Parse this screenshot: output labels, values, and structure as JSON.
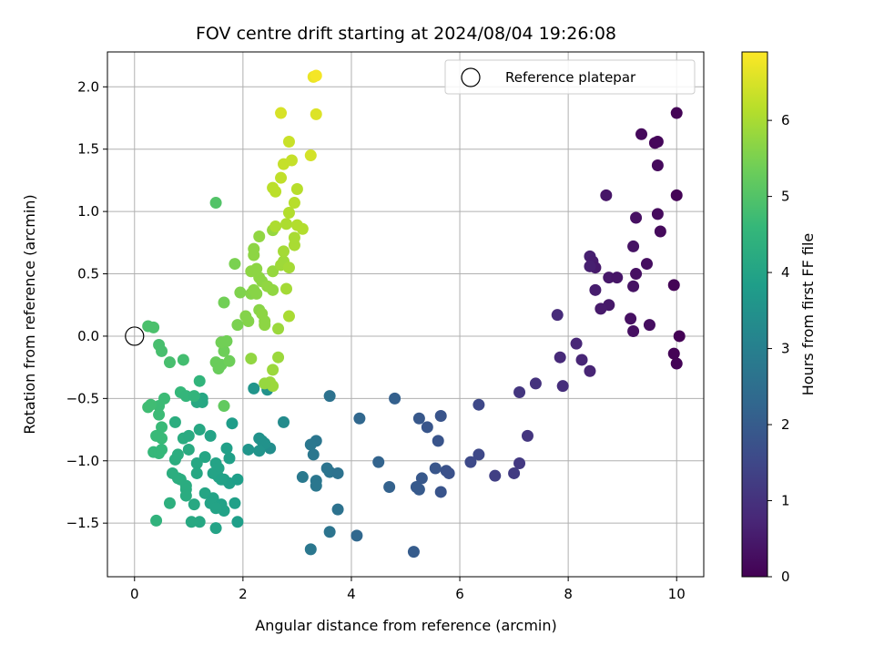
{
  "chart_data": {
    "type": "scatter",
    "title": "FOV centre drift starting at 2024/08/04 19:26:08",
    "xlabel": "Angular distance from reference (arcmin)",
    "ylabel": "Rotation from reference (arcmin)",
    "xlim": [
      -0.5,
      10.5
    ],
    "ylim": [
      -1.93,
      2.28
    ],
    "xticks": [
      0,
      2,
      4,
      6,
      8,
      10
    ],
    "yticks": [
      -1.5,
      -1.0,
      -0.5,
      0.0,
      0.5,
      1.0,
      1.5,
      2.0
    ],
    "ytick_labels": [
      "−1.5",
      "−1.0",
      "−0.5",
      "0.0",
      "0.5",
      "1.0",
      "1.5",
      "2.0"
    ],
    "grid": true,
    "legend": {
      "placement": "top-right",
      "entries": [
        "Reference platepar"
      ]
    },
    "reference_point": {
      "x": 0,
      "y": 0,
      "label": "Reference platepar"
    },
    "colorbar": {
      "label": "Hours from first FF file",
      "colormap": "viridis",
      "range": [
        0,
        6.9
      ],
      "ticks": [
        0,
        1,
        2,
        3,
        4,
        5,
        6
      ],
      "stops": [
        "#440154",
        "#482878",
        "#3e4989",
        "#31688e",
        "#26828e",
        "#1f9e89",
        "#35b779",
        "#6ece58",
        "#b5de2b",
        "#fde725"
      ]
    },
    "points": [
      {
        "x": 10.0,
        "y": 1.79,
        "h": 0.05
      },
      {
        "x": 9.35,
        "y": 1.62,
        "h": 0.15
      },
      {
        "x": 9.6,
        "y": 1.55,
        "h": 0.1
      },
      {
        "x": 9.65,
        "y": 1.56,
        "h": 0.12
      },
      {
        "x": 9.65,
        "y": 1.37,
        "h": 0.18
      },
      {
        "x": 8.7,
        "y": 1.13,
        "h": 0.4
      },
      {
        "x": 10.0,
        "y": 1.13,
        "h": 0.05
      },
      {
        "x": 9.25,
        "y": 0.95,
        "h": 0.3
      },
      {
        "x": 9.65,
        "y": 0.98,
        "h": 0.2
      },
      {
        "x": 9.7,
        "y": 0.84,
        "h": 0.18
      },
      {
        "x": 9.2,
        "y": 0.72,
        "h": 0.35
      },
      {
        "x": 8.4,
        "y": 0.64,
        "h": 0.6
      },
      {
        "x": 8.45,
        "y": 0.6,
        "h": 0.55
      },
      {
        "x": 8.5,
        "y": 0.55,
        "h": 0.5
      },
      {
        "x": 8.4,
        "y": 0.56,
        "h": 0.6
      },
      {
        "x": 8.75,
        "y": 0.47,
        "h": 0.45
      },
      {
        "x": 8.9,
        "y": 0.47,
        "h": 0.4
      },
      {
        "x": 9.25,
        "y": 0.5,
        "h": 0.3
      },
      {
        "x": 9.45,
        "y": 0.58,
        "h": 0.25
      },
      {
        "x": 9.2,
        "y": 0.4,
        "h": 0.35
      },
      {
        "x": 8.5,
        "y": 0.37,
        "h": 0.55
      },
      {
        "x": 8.75,
        "y": 0.25,
        "h": 0.45
      },
      {
        "x": 8.6,
        "y": 0.22,
        "h": 0.5
      },
      {
        "x": 9.95,
        "y": 0.41,
        "h": 0.05
      },
      {
        "x": 9.15,
        "y": 0.14,
        "h": 0.3
      },
      {
        "x": 9.5,
        "y": 0.09,
        "h": 0.25
      },
      {
        "x": 9.2,
        "y": 0.04,
        "h": 0.3
      },
      {
        "x": 10.05,
        "y": 0.0,
        "h": 0.02
      },
      {
        "x": 7.8,
        "y": 0.17,
        "h": 0.85
      },
      {
        "x": 8.15,
        "y": -0.06,
        "h": 0.75
      },
      {
        "x": 7.85,
        "y": -0.17,
        "h": 0.82
      },
      {
        "x": 8.25,
        "y": -0.19,
        "h": 0.72
      },
      {
        "x": 8.4,
        "y": -0.28,
        "h": 0.7
      },
      {
        "x": 9.95,
        "y": -0.14,
        "h": 0.05
      },
      {
        "x": 10.0,
        "y": -0.22,
        "h": 0.05
      },
      {
        "x": 7.4,
        "y": -0.38,
        "h": 1.0
      },
      {
        "x": 7.9,
        "y": -0.4,
        "h": 0.9
      },
      {
        "x": 7.1,
        "y": -0.45,
        "h": 1.1
      },
      {
        "x": 7.25,
        "y": -0.8,
        "h": 1.1
      },
      {
        "x": 7.1,
        "y": -1.02,
        "h": 1.15
      },
      {
        "x": 7.0,
        "y": -1.1,
        "h": 1.2
      },
      {
        "x": 6.65,
        "y": -1.12,
        "h": 1.3
      },
      {
        "x": 6.35,
        "y": -0.55,
        "h": 1.5
      },
      {
        "x": 6.35,
        "y": -0.95,
        "h": 1.5
      },
      {
        "x": 6.2,
        "y": -1.01,
        "h": 1.55
      },
      {
        "x": 5.65,
        "y": -0.64,
        "h": 1.8
      },
      {
        "x": 5.25,
        "y": -0.66,
        "h": 1.9
      },
      {
        "x": 5.4,
        "y": -0.73,
        "h": 1.85
      },
      {
        "x": 5.6,
        "y": -0.84,
        "h": 1.8
      },
      {
        "x": 4.8,
        "y": -0.5,
        "h": 2.1
      },
      {
        "x": 4.15,
        "y": -0.66,
        "h": 2.3
      },
      {
        "x": 4.5,
        "y": -1.01,
        "h": 2.2
      },
      {
        "x": 4.7,
        "y": -1.21,
        "h": 2.15
      },
      {
        "x": 5.55,
        "y": -1.06,
        "h": 1.85
      },
      {
        "x": 5.75,
        "y": -1.08,
        "h": 1.75
      },
      {
        "x": 5.8,
        "y": -1.1,
        "h": 1.72
      },
      {
        "x": 5.3,
        "y": -1.14,
        "h": 1.9
      },
      {
        "x": 5.2,
        "y": -1.21,
        "h": 1.95
      },
      {
        "x": 5.25,
        "y": -1.23,
        "h": 1.95
      },
      {
        "x": 5.65,
        "y": -1.25,
        "h": 1.8
      },
      {
        "x": 5.15,
        "y": -1.73,
        "h": 2.0
      },
      {
        "x": 4.1,
        "y": -1.6,
        "h": 2.3
      },
      {
        "x": 3.6,
        "y": -0.48,
        "h": 2.6
      },
      {
        "x": 3.35,
        "y": -0.84,
        "h": 2.7
      },
      {
        "x": 3.25,
        "y": -0.87,
        "h": 2.75
      },
      {
        "x": 3.3,
        "y": -0.95,
        "h": 2.75
      },
      {
        "x": 3.55,
        "y": -1.06,
        "h": 2.65
      },
      {
        "x": 3.6,
        "y": -1.09,
        "h": 2.65
      },
      {
        "x": 3.75,
        "y": -1.1,
        "h": 2.6
      },
      {
        "x": 3.1,
        "y": -1.13,
        "h": 2.8
      },
      {
        "x": 3.35,
        "y": -1.16,
        "h": 2.75
      },
      {
        "x": 3.35,
        "y": -1.2,
        "h": 2.75
      },
      {
        "x": 3.75,
        "y": -1.39,
        "h": 2.6
      },
      {
        "x": 3.6,
        "y": -1.57,
        "h": 2.65
      },
      {
        "x": 3.25,
        "y": -1.71,
        "h": 2.75
      },
      {
        "x": 2.75,
        "y": -0.69,
        "h": 3.3
      },
      {
        "x": 2.5,
        "y": -0.9,
        "h": 3.4
      },
      {
        "x": 2.3,
        "y": -0.82,
        "h": 3.5
      },
      {
        "x": 2.35,
        "y": -0.84,
        "h": 3.5
      },
      {
        "x": 2.4,
        "y": -0.86,
        "h": 3.5
      },
      {
        "x": 2.3,
        "y": -0.92,
        "h": 3.55
      },
      {
        "x": 2.1,
        "y": -0.91,
        "h": 3.6
      },
      {
        "x": 2.2,
        "y": -0.42,
        "h": 3.6
      },
      {
        "x": 2.45,
        "y": -0.43,
        "h": 3.5
      },
      {
        "x": 1.8,
        "y": -0.7,
        "h": 3.8
      },
      {
        "x": 1.25,
        "y": -0.5,
        "h": 4.1
      },
      {
        "x": 1.25,
        "y": -0.53,
        "h": 4.1
      },
      {
        "x": 1.15,
        "y": -0.53,
        "h": 4.15
      },
      {
        "x": 1.2,
        "y": -0.75,
        "h": 4.1
      },
      {
        "x": 1.4,
        "y": -0.8,
        "h": 4.0
      },
      {
        "x": 1.7,
        "y": -0.9,
        "h": 3.9
      },
      {
        "x": 1.75,
        "y": -0.98,
        "h": 3.9
      },
      {
        "x": 1.3,
        "y": -0.97,
        "h": 4.05
      },
      {
        "x": 1.0,
        "y": -0.91,
        "h": 4.2
      },
      {
        "x": 0.9,
        "y": -0.82,
        "h": 4.25
      },
      {
        "x": 1.0,
        "y": -0.8,
        "h": 4.2
      },
      {
        "x": 1.5,
        "y": -1.02,
        "h": 4.0
      },
      {
        "x": 1.55,
        "y": -1.06,
        "h": 4.0
      },
      {
        "x": 1.65,
        "y": -1.15,
        "h": 3.95
      },
      {
        "x": 1.75,
        "y": -1.18,
        "h": 3.9
      },
      {
        "x": 1.9,
        "y": -1.15,
        "h": 3.85
      },
      {
        "x": 1.15,
        "y": -1.02,
        "h": 4.1
      },
      {
        "x": 1.15,
        "y": -1.1,
        "h": 4.1
      },
      {
        "x": 1.45,
        "y": -1.1,
        "h": 4.0
      },
      {
        "x": 1.55,
        "y": -1.13,
        "h": 4.0
      },
      {
        "x": 1.6,
        "y": -1.15,
        "h": 3.95
      },
      {
        "x": 1.3,
        "y": -1.26,
        "h": 4.05
      },
      {
        "x": 1.45,
        "y": -1.3,
        "h": 4.0
      },
      {
        "x": 1.4,
        "y": -1.34,
        "h": 4.0
      },
      {
        "x": 1.6,
        "y": -1.35,
        "h": 3.95
      },
      {
        "x": 1.65,
        "y": -1.4,
        "h": 3.95
      },
      {
        "x": 1.85,
        "y": -1.34,
        "h": 3.9
      },
      {
        "x": 1.5,
        "y": -1.38,
        "h": 4.0
      },
      {
        "x": 1.9,
        "y": -1.49,
        "h": 3.85
      },
      {
        "x": 1.5,
        "y": -1.54,
        "h": 4.0
      },
      {
        "x": 1.2,
        "y": -1.49,
        "h": 4.1
      },
      {
        "x": 1.05,
        "y": -1.49,
        "h": 4.15
      },
      {
        "x": 0.7,
        "y": -1.1,
        "h": 4.3
      },
      {
        "x": 0.8,
        "y": -1.14,
        "h": 4.3
      },
      {
        "x": 0.85,
        "y": -1.15,
        "h": 4.3
      },
      {
        "x": 0.95,
        "y": -1.2,
        "h": 4.25
      },
      {
        "x": 0.95,
        "y": -1.23,
        "h": 4.25
      },
      {
        "x": 0.95,
        "y": -1.28,
        "h": 4.25
      },
      {
        "x": 1.1,
        "y": -1.35,
        "h": 4.15
      },
      {
        "x": 0.65,
        "y": -1.34,
        "h": 4.35
      },
      {
        "x": 0.4,
        "y": -1.48,
        "h": 4.45
      },
      {
        "x": 0.75,
        "y": -0.99,
        "h": 4.3
      },
      {
        "x": 0.8,
        "y": -0.95,
        "h": 4.3
      },
      {
        "x": 0.75,
        "y": -0.69,
        "h": 4.3
      },
      {
        "x": 0.85,
        "y": -0.45,
        "h": 4.6
      },
      {
        "x": 0.95,
        "y": -0.48,
        "h": 4.55
      },
      {
        "x": 1.1,
        "y": -0.48,
        "h": 4.5
      },
      {
        "x": 1.2,
        "y": -0.36,
        "h": 4.5
      },
      {
        "x": 0.45,
        "y": -0.56,
        "h": 4.7
      },
      {
        "x": 0.45,
        "y": -0.63,
        "h": 4.7
      },
      {
        "x": 0.5,
        "y": -0.73,
        "h": 4.65
      },
      {
        "x": 0.4,
        "y": -0.8,
        "h": 4.65
      },
      {
        "x": 0.5,
        "y": -0.82,
        "h": 4.65
      },
      {
        "x": 0.35,
        "y": -0.93,
        "h": 4.6
      },
      {
        "x": 0.45,
        "y": -0.94,
        "h": 4.6
      },
      {
        "x": 0.5,
        "y": -0.91,
        "h": 4.6
      },
      {
        "x": 0.55,
        "y": -0.5,
        "h": 4.7
      },
      {
        "x": 0.3,
        "y": -0.55,
        "h": 4.75
      },
      {
        "x": 0.25,
        "y": -0.57,
        "h": 4.75
      },
      {
        "x": 0.45,
        "y": -0.07,
        "h": 4.85
      },
      {
        "x": 0.5,
        "y": -0.12,
        "h": 4.85
      },
      {
        "x": 0.65,
        "y": -0.21,
        "h": 4.85
      },
      {
        "x": 0.9,
        "y": -0.19,
        "h": 4.8
      },
      {
        "x": 0.25,
        "y": 0.08,
        "h": 4.9
      },
      {
        "x": 0.35,
        "y": 0.07,
        "h": 4.9
      },
      {
        "x": 1.5,
        "y": 1.07,
        "h": 5.0
      },
      {
        "x": 1.65,
        "y": -0.56,
        "h": 5.2
      },
      {
        "x": 1.5,
        "y": -0.21,
        "h": 5.3
      },
      {
        "x": 1.6,
        "y": -0.23,
        "h": 5.3
      },
      {
        "x": 1.55,
        "y": -0.26,
        "h": 5.3
      },
      {
        "x": 1.75,
        "y": -0.2,
        "h": 5.35
      },
      {
        "x": 1.65,
        "y": -0.12,
        "h": 5.35
      },
      {
        "x": 1.6,
        "y": -0.05,
        "h": 5.4
      },
      {
        "x": 1.7,
        "y": -0.04,
        "h": 5.4
      },
      {
        "x": 1.65,
        "y": 0.27,
        "h": 5.4
      },
      {
        "x": 1.85,
        "y": 0.58,
        "h": 5.5
      },
      {
        "x": 1.9,
        "y": 0.09,
        "h": 5.5
      },
      {
        "x": 1.95,
        "y": 0.35,
        "h": 5.55
      },
      {
        "x": 2.05,
        "y": 0.16,
        "h": 5.6
      },
      {
        "x": 2.1,
        "y": 0.12,
        "h": 5.6
      },
      {
        "x": 2.15,
        "y": 0.34,
        "h": 5.6
      },
      {
        "x": 2.2,
        "y": 0.37,
        "h": 5.65
      },
      {
        "x": 2.25,
        "y": 0.34,
        "h": 5.65
      },
      {
        "x": 2.3,
        "y": 0.21,
        "h": 5.65
      },
      {
        "x": 2.35,
        "y": 0.18,
        "h": 5.7
      },
      {
        "x": 2.4,
        "y": 0.12,
        "h": 5.7
      },
      {
        "x": 2.4,
        "y": 0.09,
        "h": 5.7
      },
      {
        "x": 2.3,
        "y": 0.47,
        "h": 5.7
      },
      {
        "x": 2.35,
        "y": 0.44,
        "h": 5.7
      },
      {
        "x": 2.45,
        "y": 0.4,
        "h": 5.75
      },
      {
        "x": 2.55,
        "y": 0.37,
        "h": 5.75
      },
      {
        "x": 2.25,
        "y": 0.54,
        "h": 5.7
      },
      {
        "x": 2.15,
        "y": 0.52,
        "h": 5.7
      },
      {
        "x": 2.2,
        "y": 0.65,
        "h": 5.7
      },
      {
        "x": 2.2,
        "y": 0.7,
        "h": 5.7
      },
      {
        "x": 2.3,
        "y": 0.8,
        "h": 5.75
      },
      {
        "x": 2.55,
        "y": 0.85,
        "h": 5.8
      },
      {
        "x": 2.55,
        "y": 0.52,
        "h": 5.8
      },
      {
        "x": 2.65,
        "y": 0.06,
        "h": 5.85
      },
      {
        "x": 2.15,
        "y": -0.18,
        "h": 5.75
      },
      {
        "x": 2.65,
        "y": -0.17,
        "h": 5.85
      },
      {
        "x": 2.55,
        "y": -0.27,
        "h": 5.85
      },
      {
        "x": 2.5,
        "y": -0.37,
        "h": 5.85
      },
      {
        "x": 2.55,
        "y": -0.4,
        "h": 5.85
      },
      {
        "x": 2.4,
        "y": -0.38,
        "h": 5.8
      },
      {
        "x": 2.7,
        "y": 0.57,
        "h": 5.9
      },
      {
        "x": 2.75,
        "y": 0.6,
        "h": 5.9
      },
      {
        "x": 2.85,
        "y": 0.55,
        "h": 5.95
      },
      {
        "x": 2.75,
        "y": 0.68,
        "h": 5.95
      },
      {
        "x": 2.8,
        "y": 0.38,
        "h": 5.95
      },
      {
        "x": 2.85,
        "y": 0.16,
        "h": 6.0
      },
      {
        "x": 2.95,
        "y": 0.73,
        "h": 6.0
      },
      {
        "x": 2.95,
        "y": 0.79,
        "h": 6.0
      },
      {
        "x": 2.6,
        "y": 0.88,
        "h": 6.05
      },
      {
        "x": 2.8,
        "y": 0.9,
        "h": 6.05
      },
      {
        "x": 3.0,
        "y": 0.89,
        "h": 6.1
      },
      {
        "x": 3.1,
        "y": 0.86,
        "h": 6.1
      },
      {
        "x": 2.85,
        "y": 0.99,
        "h": 6.1
      },
      {
        "x": 2.95,
        "y": 1.07,
        "h": 6.15
      },
      {
        "x": 3.0,
        "y": 1.18,
        "h": 6.15
      },
      {
        "x": 2.55,
        "y": 1.19,
        "h": 6.2
      },
      {
        "x": 2.6,
        "y": 1.16,
        "h": 6.2
      },
      {
        "x": 2.7,
        "y": 1.27,
        "h": 6.25
      },
      {
        "x": 2.75,
        "y": 1.38,
        "h": 6.3
      },
      {
        "x": 2.9,
        "y": 1.41,
        "h": 6.3
      },
      {
        "x": 2.85,
        "y": 1.56,
        "h": 6.35
      },
      {
        "x": 3.25,
        "y": 1.45,
        "h": 6.45
      },
      {
        "x": 2.7,
        "y": 1.79,
        "h": 6.5
      },
      {
        "x": 3.35,
        "y": 1.78,
        "h": 6.55
      },
      {
        "x": 3.3,
        "y": 2.08,
        "h": 6.7
      },
      {
        "x": 3.35,
        "y": 2.09,
        "h": 6.8
      }
    ]
  }
}
